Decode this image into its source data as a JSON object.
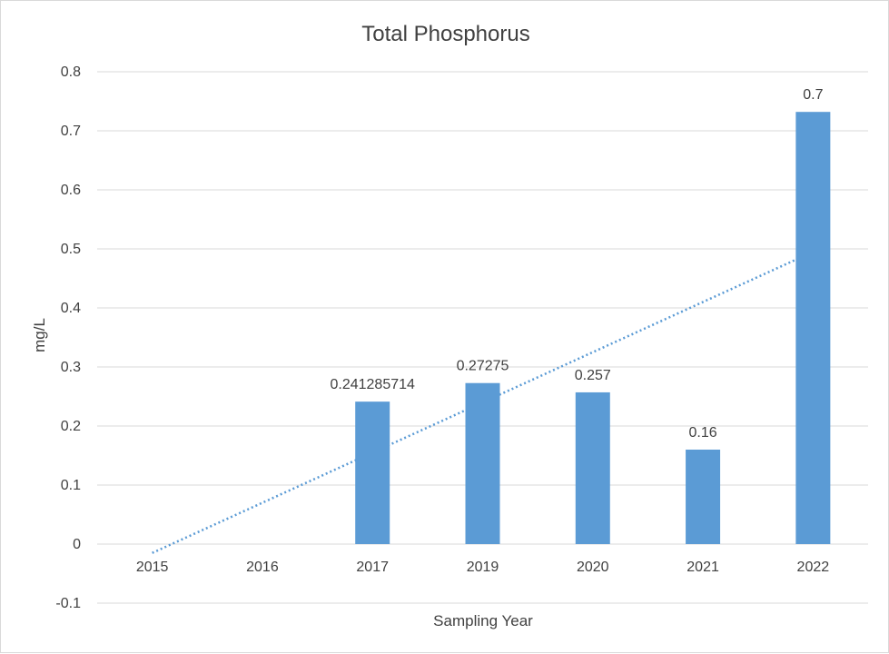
{
  "chart_data": {
    "type": "bar",
    "title": "Total Phosphorus",
    "xlabel": "Sampling Year",
    "ylabel": "mg/L",
    "categories": [
      "2015",
      "2016",
      "2017",
      "2019",
      "2020",
      "2021",
      "2022"
    ],
    "series": [
      {
        "values": [
          null,
          null,
          0.241285714,
          0.27275,
          0.257,
          0.16,
          0.732
        ],
        "data_labels": [
          "",
          "",
          "0.241285714",
          "0.27275",
          "0.257",
          "0.16",
          "0.7"
        ],
        "color": "#5b9bd5"
      }
    ],
    "trendline": {
      "type": "linear",
      "style": "dotted",
      "color": "#5b9bd5",
      "start": [
        0,
        -0.015
      ],
      "end": [
        6,
        0.495
      ]
    },
    "ylim": [
      -0.1,
      0.8
    ],
    "yticks": [
      -0.1,
      0,
      0.1,
      0.2,
      0.3,
      0.4,
      0.5,
      0.6,
      0.7,
      0.8
    ],
    "ytick_labels": [
      "-0.1",
      "0",
      "0.1",
      "0.2",
      "0.3",
      "0.4",
      "0.5",
      "0.6",
      "0.7",
      "0.8"
    ],
    "grid": true,
    "legend": "none"
  }
}
